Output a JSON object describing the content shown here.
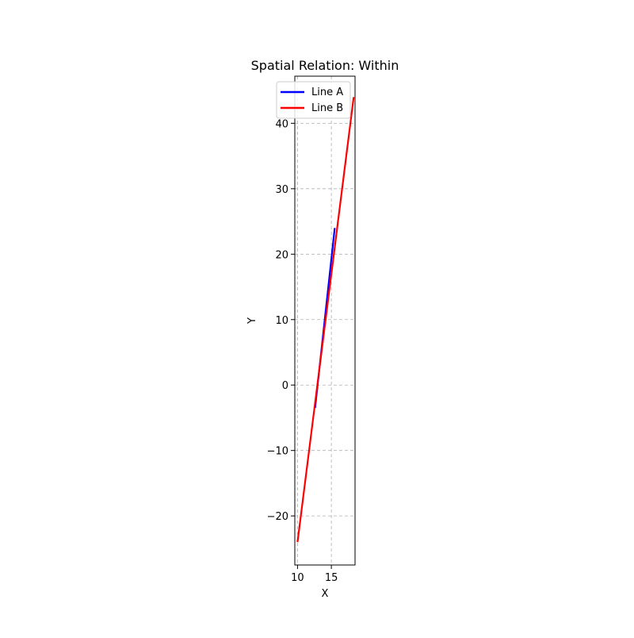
{
  "chart_data": {
    "type": "line",
    "title": "Spatial Relation: Within",
    "xlabel": "X",
    "ylabel": "Y",
    "xlim": [
      9.6,
      18.5
    ],
    "ylim": [
      -27.5,
      47.2
    ],
    "xticks": [
      10,
      15
    ],
    "yticks": [
      -20,
      -10,
      0,
      10,
      20,
      30,
      40
    ],
    "grid": true,
    "legend_position": "top-right",
    "series": [
      {
        "name": "Line A",
        "color": "#0000ff",
        "x": [
          12.6,
          15.5
        ],
        "y": [
          -3.5,
          24.0
        ]
      },
      {
        "name": "Line B",
        "color": "#ff0000",
        "x": [
          10.0,
          18.3
        ],
        "y": [
          -24.0,
          44.0
        ]
      }
    ]
  }
}
